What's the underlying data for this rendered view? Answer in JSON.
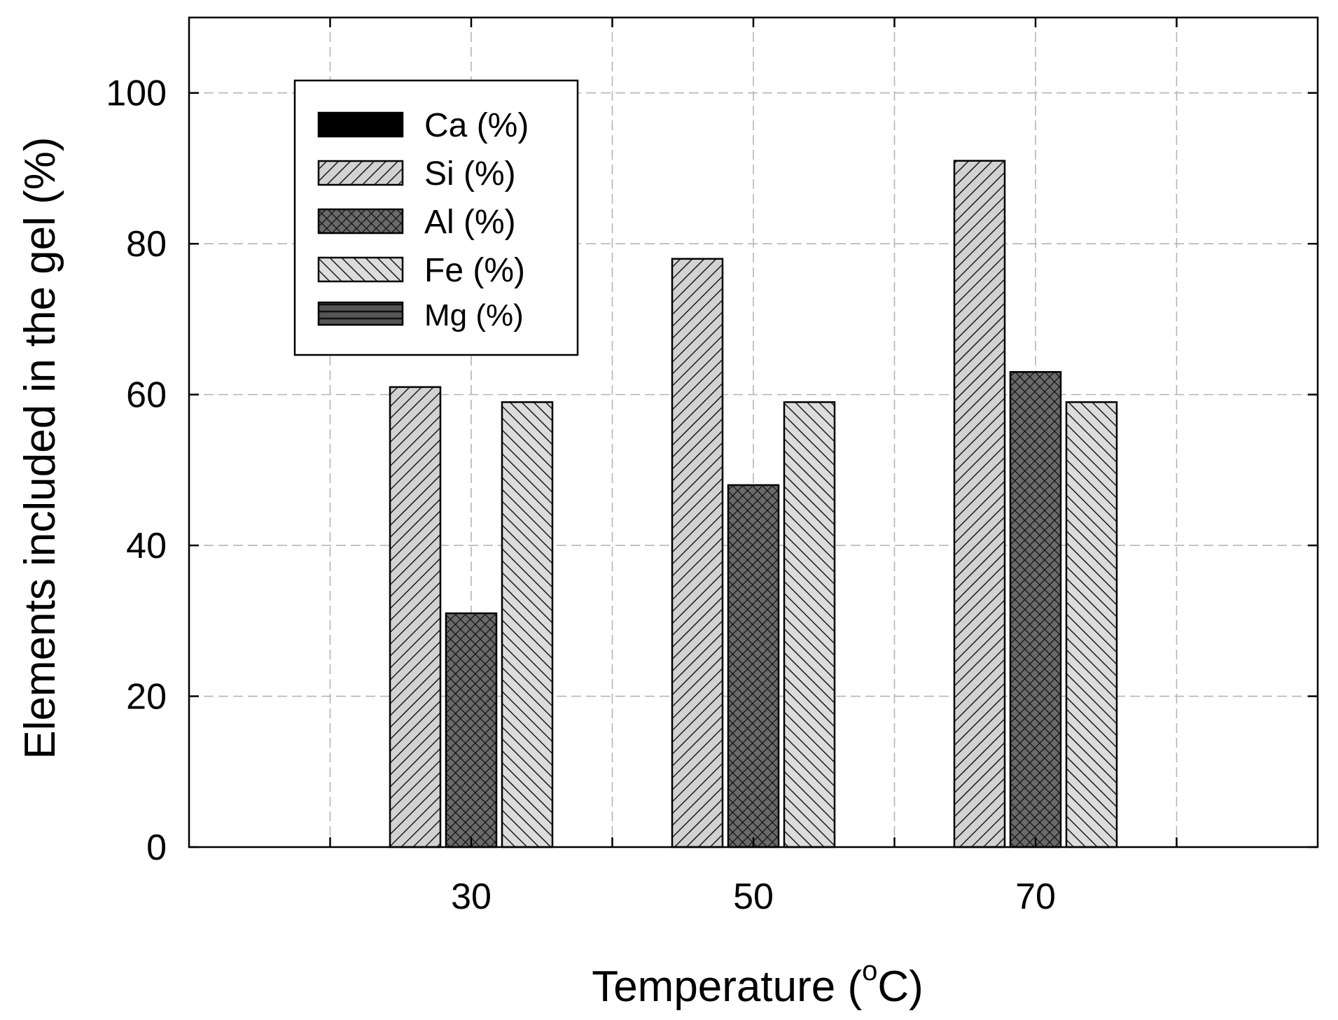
{
  "chart_data": {
    "type": "bar",
    "xlabel": "Temperature (",
    "xlabel_degree": "o",
    "xlabel_unit": "C)",
    "ylabel": "Elements included in the gel (%)",
    "ylim": [
      0,
      110
    ],
    "yticks": [
      0,
      20,
      40,
      60,
      80,
      100
    ],
    "xlim": [
      10,
      90
    ],
    "xticks": [
      30,
      50,
      70
    ],
    "x_gridlines": [
      20,
      30,
      40,
      50,
      60,
      70,
      80
    ],
    "grid": true,
    "legend_position": "top-left",
    "categories": [
      "30",
      "50",
      "70"
    ],
    "series": [
      {
        "name": "Ca (%)",
        "values": [
          0,
          0,
          0
        ],
        "pattern": "solid-black"
      },
      {
        "name": "Si (%)",
        "values": [
          61,
          78,
          91
        ],
        "pattern": "diag-up-light"
      },
      {
        "name": "Al (%)",
        "values": [
          31,
          48,
          63
        ],
        "pattern": "crosshatch-dark"
      },
      {
        "name": "Fe (%)",
        "values": [
          59,
          59,
          59
        ],
        "pattern": "diag-down-light"
      },
      {
        "name": "Mg (%)",
        "values": [
          0,
          0,
          0
        ],
        "pattern": "horizontal-dark"
      }
    ]
  }
}
